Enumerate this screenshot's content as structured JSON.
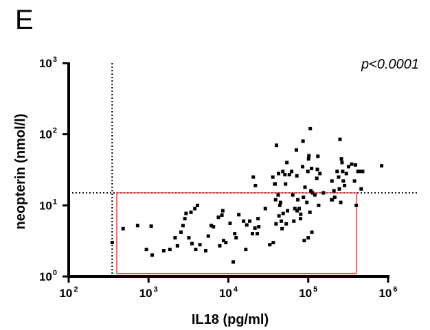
{
  "panel_label": "E",
  "annotation": "p<0.0001",
  "chart_data": {
    "type": "scatter",
    "xlabel": "IL18 (pg/ml)",
    "ylabel": "neopterin (nmol/l)",
    "xscale": "log",
    "yscale": "log",
    "xlim": [
      100,
      1000000
    ],
    "ylim": [
      1,
      1000
    ],
    "x_ticks": [
      {
        "base": "10",
        "exp": "2",
        "value": 100
      },
      {
        "base": "10",
        "exp": "3",
        "value": 1000
      },
      {
        "base": "10",
        "exp": "4",
        "value": 10000
      },
      {
        "base": "10",
        "exp": "5",
        "value": 100000
      },
      {
        "base": "10",
        "exp": "6",
        "value": 1000000
      }
    ],
    "y_ticks": [
      {
        "base": "10",
        "exp": "0",
        "value": 1
      },
      {
        "base": "10",
        "exp": "1",
        "value": 10
      },
      {
        "base": "10",
        "exp": "2",
        "value": 100
      },
      {
        "base": "10",
        "exp": "3",
        "value": 1000
      }
    ],
    "reference_lines": {
      "x_cutoff": 350,
      "y_cutoff": 15
    },
    "highlight_box": {
      "x": [
        400,
        400000
      ],
      "y": [
        1.1,
        15
      ],
      "color": "#e0474c"
    },
    "grid": false,
    "legend": "none",
    "points": [
      [
        350,
        3.0
      ],
      [
        480,
        4.7
      ],
      [
        730,
        5.2
      ],
      [
        940,
        2.4
      ],
      [
        1080,
        5.1
      ],
      [
        1110,
        2.0
      ],
      [
        1550,
        2.3
      ],
      [
        1850,
        2.4
      ],
      [
        2150,
        3.5
      ],
      [
        2300,
        2.7
      ],
      [
        2550,
        4.2
      ],
      [
        2700,
        5.2
      ],
      [
        2850,
        6.5
      ],
      [
        2950,
        7.7
      ],
      [
        3200,
        3.5
      ],
      [
        3400,
        8.0
      ],
      [
        3500,
        2.9
      ],
      [
        3800,
        9.0
      ],
      [
        3900,
        2.4
      ],
      [
        4100,
        10.0
      ],
      [
        4400,
        2.8
      ],
      [
        5200,
        2.3
      ],
      [
        5600,
        3.7
      ],
      [
        6100,
        5.2
      ],
      [
        6500,
        5.0
      ],
      [
        7500,
        6.8
      ],
      [
        7800,
        2.7
      ],
      [
        8300,
        7.3
      ],
      [
        8500,
        8.4
      ],
      [
        8700,
        3.2
      ],
      [
        9300,
        3.0
      ],
      [
        10500,
        5.6
      ],
      [
        11500,
        1.6
      ],
      [
        12000,
        4.0
      ],
      [
        12500,
        3.5
      ],
      [
        13500,
        7.4
      ],
      [
        15500,
        6.0
      ],
      [
        16500,
        2.4
      ],
      [
        17000,
        5.3
      ],
      [
        18500,
        6.0
      ],
      [
        20000,
        4.0
      ],
      [
        20500,
        25.0
      ],
      [
        21500,
        4.8
      ],
      [
        21800,
        19.0
      ],
      [
        23000,
        4.0
      ],
      [
        23500,
        6.5
      ],
      [
        24000,
        5.0
      ],
      [
        29000,
        9.0
      ],
      [
        33000,
        2.8
      ],
      [
        36000,
        25.0
      ],
      [
        36500,
        3.0
      ],
      [
        38000,
        20.0
      ],
      [
        38500,
        20.0
      ],
      [
        39000,
        12.0
      ],
      [
        39500,
        5.5
      ],
      [
        40000,
        70.0
      ],
      [
        42000,
        14.0
      ],
      [
        42500,
        28.0
      ],
      [
        43000,
        7.1
      ],
      [
        44000,
        10.0
      ],
      [
        45000,
        11.0
      ],
      [
        46000,
        6.0
      ],
      [
        47000,
        4.7
      ],
      [
        48000,
        30.0
      ],
      [
        48500,
        7.7
      ],
      [
        51000,
        27.0
      ],
      [
        52000,
        20.0
      ],
      [
        53000,
        5.5
      ],
      [
        54000,
        40.0
      ],
      [
        55000,
        8.4
      ],
      [
        58000,
        27.0
      ],
      [
        62000,
        30.0
      ],
      [
        64000,
        14.0
      ],
      [
        66000,
        6.0
      ],
      [
        68000,
        9.0
      ],
      [
        71000,
        60.0
      ],
      [
        72000,
        26.0
      ],
      [
        72500,
        8.4
      ],
      [
        74000,
        12.0
      ],
      [
        77000,
        9.0
      ],
      [
        80000,
        6.5
      ],
      [
        80500,
        7.5
      ],
      [
        85000,
        35.0
      ],
      [
        86000,
        80.0
      ],
      [
        87000,
        13.0
      ],
      [
        89000,
        3.2
      ],
      [
        91000,
        18.0
      ],
      [
        96000,
        11.0
      ],
      [
        99000,
        30.0
      ],
      [
        100000,
        3.5
      ],
      [
        101000,
        45.0
      ],
      [
        102000,
        50.0
      ],
      [
        105000,
        8.0
      ],
      [
        106000,
        120.0
      ],
      [
        108000,
        16.0
      ],
      [
        110000,
        33.0
      ],
      [
        111000,
        4.2
      ],
      [
        113000,
        15.0
      ],
      [
        121000,
        14.0
      ],
      [
        128000,
        24.0
      ],
      [
        130000,
        32.0
      ],
      [
        132000,
        49.0
      ],
      [
        135000,
        10.0
      ],
      [
        140000,
        28.0
      ],
      [
        155000,
        15.0
      ],
      [
        196000,
        12.0
      ],
      [
        198000,
        22.0
      ],
      [
        200000,
        12.0
      ],
      [
        210000,
        16.0
      ],
      [
        215000,
        13.0
      ],
      [
        230000,
        30.0
      ],
      [
        240000,
        25.0
      ],
      [
        245000,
        17.0
      ],
      [
        250000,
        85.0
      ],
      [
        255000,
        11.0
      ],
      [
        260000,
        45.0
      ],
      [
        265000,
        40.0
      ],
      [
        270000,
        30.0
      ],
      [
        275000,
        22.0
      ],
      [
        285000,
        19.0
      ],
      [
        300000,
        28.0
      ],
      [
        320000,
        35.0
      ],
      [
        350000,
        38.0
      ],
      [
        380000,
        22.0
      ],
      [
        390000,
        37.0
      ],
      [
        400000,
        10.0
      ],
      [
        420000,
        30.0
      ],
      [
        440000,
        30.0
      ],
      [
        460000,
        17.0
      ],
      [
        480000,
        30.0
      ],
      [
        830000,
        36.0
      ]
    ]
  }
}
